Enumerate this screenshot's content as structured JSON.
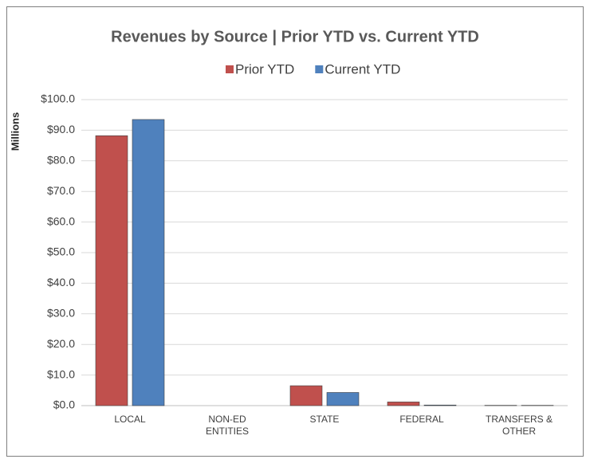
{
  "chart_data": {
    "type": "bar",
    "title": "Revenues by Source | Prior YTD vs. Current YTD",
    "y_label": "Millions",
    "categories": [
      "LOCAL",
      "NON-ED\nENTITIES",
      "STATE",
      "FEDERAL",
      "TRANSFERS &\nOTHER"
    ],
    "series": [
      {
        "name": "Prior YTD",
        "color": "#c0504d",
        "values": [
          88.2,
          0,
          6.5,
          1.2,
          0.1
        ]
      },
      {
        "name": "Current YTD",
        "color": "#4f81bd",
        "values": [
          93.5,
          0,
          4.3,
          0.2,
          0.1
        ]
      }
    ],
    "ylim": [
      0,
      100
    ],
    "yticks": [
      {
        "value": 0,
        "label": "$0.0"
      },
      {
        "value": 10,
        "label": "$10.0"
      },
      {
        "value": 20,
        "label": "$20.0"
      },
      {
        "value": 30,
        "label": "$30.0"
      },
      {
        "value": 40,
        "label": "$40.0"
      },
      {
        "value": 50,
        "label": "$50.0"
      },
      {
        "value": 60,
        "label": "$60.0"
      },
      {
        "value": 70,
        "label": "$70.0"
      },
      {
        "value": 80,
        "label": "$80.0"
      },
      {
        "value": 90,
        "label": "$90.0"
      },
      {
        "value": 100,
        "label": "$100.0"
      }
    ],
    "grid": true,
    "legend": "top"
  }
}
